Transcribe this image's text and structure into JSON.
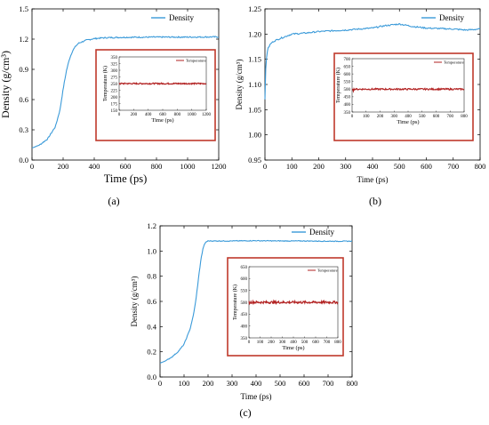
{
  "chart_data": [
    {
      "type": "line",
      "panel": "(a)",
      "xlabel": "Time (ps)",
      "ylabel": "Density (g/cm³)",
      "xlim": [
        0,
        1200
      ],
      "ylim": [
        0.0,
        1.5
      ],
      "xticks": [
        0,
        200,
        400,
        600,
        800,
        1000,
        1200
      ],
      "yticks": [
        0.0,
        0.3,
        0.6,
        0.9,
        1.2,
        1.5
      ],
      "legend_position": "top-right",
      "series": [
        {
          "name": "Density",
          "color": "#3a9ad9",
          "x": [
            0,
            50,
            100,
            150,
            180,
            200,
            220,
            240,
            260,
            280,
            300,
            350,
            400,
            450,
            500,
            600,
            800,
            1000,
            1200
          ],
          "y": [
            0.12,
            0.15,
            0.21,
            0.33,
            0.5,
            0.7,
            0.88,
            1.0,
            1.08,
            1.13,
            1.16,
            1.19,
            1.205,
            1.212,
            1.215,
            1.218,
            1.22,
            1.22,
            1.222
          ]
        }
      ],
      "inset": {
        "xlabel": "Time (ps)",
        "ylabel": "Temperature (K)",
        "xlim": [
          0,
          1200
        ],
        "ylim": [
          150,
          350
        ],
        "xticks": [
          0,
          200,
          400,
          600,
          800,
          1000,
          1200
        ],
        "yticks": [
          150,
          175,
          200,
          225,
          250,
          275,
          300,
          325,
          350
        ],
        "legend_position": "top-right",
        "series": [
          {
            "name": "Temperature",
            "color": "#b22222",
            "mean": 250,
            "noise": 2.5
          }
        ]
      }
    },
    {
      "type": "line",
      "panel": "(b)",
      "xlabel": "Time (ps)",
      "ylabel": "Density (g/cm³)",
      "xlim": [
        0,
        800
      ],
      "ylim": [
        0.95,
        1.25
      ],
      "xticks": [
        0,
        100,
        200,
        300,
        400,
        500,
        600,
        700,
        800
      ],
      "yticks": [
        0.95,
        1.0,
        1.05,
        1.1,
        1.15,
        1.2,
        1.25
      ],
      "legend_position": "top-right",
      "series": [
        {
          "name": "Density",
          "color": "#3a9ad9",
          "x": [
            0,
            2,
            5,
            10,
            20,
            30,
            50,
            75,
            100,
            150,
            200,
            300,
            400,
            450,
            500,
            550,
            600,
            700,
            750,
            800
          ],
          "y": [
            1.07,
            1.12,
            1.15,
            1.17,
            1.18,
            1.185,
            1.19,
            1.195,
            1.2,
            1.202,
            1.205,
            1.208,
            1.212,
            1.217,
            1.22,
            1.215,
            1.212,
            1.21,
            1.208,
            1.21
          ]
        }
      ],
      "inset": {
        "xlabel": "Time (ps)",
        "ylabel": "Temperature (K)",
        "xlim": [
          0,
          800
        ],
        "ylim": [
          350,
          700
        ],
        "xticks": [
          0,
          100,
          200,
          300,
          400,
          500,
          600,
          700,
          800
        ],
        "yticks": [
          350,
          400,
          450,
          500,
          550,
          600,
          650,
          700
        ],
        "legend_position": "top-right",
        "series": [
          {
            "name": "Temperature",
            "color": "#b22222",
            "mean": 500,
            "noise": 5
          }
        ]
      }
    },
    {
      "type": "line",
      "panel": "(c)",
      "xlabel": "Time (ps)",
      "ylabel": "Density (g/cm³)",
      "xlim": [
        0,
        800
      ],
      "ylim": [
        0.0,
        1.2
      ],
      "xticks": [
        0,
        100,
        200,
        300,
        400,
        500,
        600,
        700,
        800
      ],
      "yticks": [
        0.0,
        0.2,
        0.4,
        0.6,
        0.8,
        1.0,
        1.2
      ],
      "legend_position": "top-right",
      "series": [
        {
          "name": "Density",
          "color": "#3a9ad9",
          "x": [
            0,
            25,
            50,
            75,
            100,
            125,
            140,
            150,
            160,
            170,
            180,
            190,
            200,
            250,
            300,
            400,
            500,
            600,
            700,
            800
          ],
          "y": [
            0.11,
            0.13,
            0.16,
            0.2,
            0.26,
            0.38,
            0.5,
            0.62,
            0.78,
            0.93,
            1.03,
            1.07,
            1.08,
            1.08,
            1.08,
            1.082,
            1.08,
            1.08,
            1.078,
            1.078
          ]
        }
      ],
      "inset": {
        "xlabel": "Time (ps)",
        "ylabel": "Temperature (K)",
        "xlim": [
          0,
          800
        ],
        "ylim": [
          350,
          650
        ],
        "xticks": [
          0,
          100,
          200,
          300,
          400,
          500,
          600,
          700,
          800
        ],
        "yticks": [
          350,
          400,
          450,
          500,
          550,
          600,
          650
        ],
        "legend_position": "top-right",
        "series": [
          {
            "name": "Temperature",
            "color": "#b22222",
            "mean": 500,
            "noise": 5
          }
        ]
      }
    }
  ]
}
